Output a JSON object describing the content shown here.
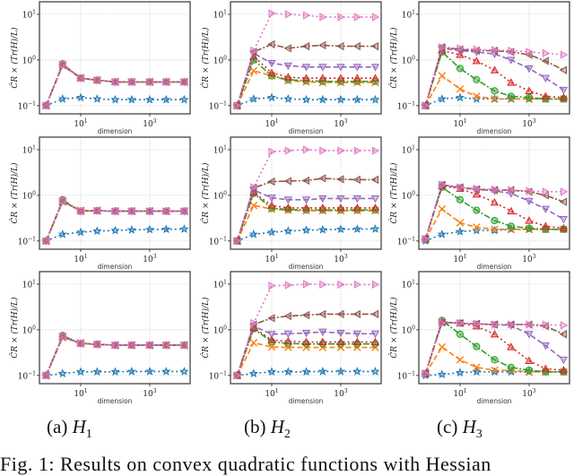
{
  "chart_data": {
    "type": "line",
    "layout": "3 rows x 3 columns grid of subplots",
    "x": [
      1,
      3,
      10,
      30,
      100,
      300,
      1000,
      3000,
      10000
    ],
    "xlabel": "dimension",
    "ylabel": "ĈR × (Tr(H)/L)",
    "xscale": "log",
    "yscale": "log",
    "xlim": [
      0.64,
      14800
    ],
    "ylim": [
      0.066,
      18.8
    ],
    "xticks": [
      {
        "base": "10",
        "exp": "1",
        "value": 10
      },
      {
        "base": "10",
        "exp": "3",
        "value": 1000
      }
    ],
    "yticks": [
      {
        "base": "10",
        "exp": "1",
        "value": 10
      },
      {
        "base": "10",
        "exp": "0",
        "value": 1
      },
      {
        "base": "10",
        "exp": "−1",
        "value": 0.1
      }
    ],
    "grid": true,
    "legend": "none",
    "styles": [
      {
        "color": "#1f77b4",
        "marker": "star",
        "dash": "2,3"
      },
      {
        "color": "#ff7f0e",
        "marker": "x",
        "dash": "6,3"
      },
      {
        "color": "#2ca02c",
        "marker": "circle",
        "dash": "7,2,2,2"
      },
      {
        "color": "#d62728",
        "marker": "triangle-up",
        "dash": "2,3"
      },
      {
        "color": "#9467bd",
        "marker": "triangle-down",
        "dash": "6,3"
      },
      {
        "color": "#8c564b",
        "marker": "triangle-left",
        "dash": "7,2,2,2"
      },
      {
        "color": "#e377c2",
        "marker": "triangle-right",
        "dash": "2,3"
      }
    ],
    "columns": [
      {
        "caption_prefix": "(a)",
        "caption_var": "H",
        "caption_sub": "1",
        "rows": [
          [
            [
              0.1,
              0.14,
              0.15,
              0.14,
              0.135,
              0.135,
              0.135,
              0.135,
              0.135
            ],
            [
              0.1,
              0.75,
              0.4,
              0.36,
              0.33,
              0.33,
              0.33,
              0.33,
              0.33
            ],
            [
              0.1,
              0.82,
              0.4,
              0.36,
              0.33,
              0.33,
              0.33,
              0.33,
              0.33
            ],
            [
              0.1,
              0.8,
              0.4,
              0.36,
              0.33,
              0.33,
              0.33,
              0.33,
              0.33
            ],
            [
              0.1,
              0.8,
              0.4,
              0.36,
              0.33,
              0.33,
              0.33,
              0.33,
              0.33
            ],
            [
              0.1,
              0.78,
              0.4,
              0.36,
              0.33,
              0.33,
              0.33,
              0.33,
              0.33
            ],
            [
              0.1,
              0.8,
              0.4,
              0.36,
              0.33,
              0.33,
              0.33,
              0.33,
              0.33
            ]
          ],
          [
            [
              0.1,
              0.14,
              0.155,
              0.165,
              0.17,
              0.175,
              0.178,
              0.18,
              0.182
            ],
            [
              0.1,
              0.72,
              0.47,
              0.46,
              0.45,
              0.45,
              0.45,
              0.45,
              0.45
            ],
            [
              0.1,
              0.8,
              0.45,
              0.46,
              0.45,
              0.45,
              0.45,
              0.45,
              0.45
            ],
            [
              0.1,
              0.75,
              0.45,
              0.46,
              0.45,
              0.45,
              0.45,
              0.45,
              0.45
            ],
            [
              0.1,
              0.75,
              0.45,
              0.46,
              0.45,
              0.45,
              0.45,
              0.45,
              0.45
            ],
            [
              0.1,
              0.74,
              0.45,
              0.46,
              0.45,
              0.45,
              0.45,
              0.45,
              0.45
            ],
            [
              0.1,
              0.75,
              0.45,
              0.46,
              0.45,
              0.45,
              0.45,
              0.45,
              0.45
            ]
          ],
          [
            [
              0.1,
              0.11,
              0.12,
              0.12,
              0.12,
              0.122,
              0.122,
              0.122,
              0.122
            ],
            [
              0.1,
              0.68,
              0.52,
              0.48,
              0.46,
              0.46,
              0.46,
              0.46,
              0.46
            ],
            [
              0.1,
              0.75,
              0.5,
              0.48,
              0.46,
              0.46,
              0.46,
              0.46,
              0.46
            ],
            [
              0.1,
              0.72,
              0.5,
              0.48,
              0.46,
              0.46,
              0.46,
              0.46,
              0.46
            ],
            [
              0.1,
              0.72,
              0.5,
              0.48,
              0.46,
              0.46,
              0.46,
              0.46,
              0.46
            ],
            [
              0.1,
              0.7,
              0.5,
              0.48,
              0.46,
              0.46,
              0.46,
              0.46,
              0.46
            ],
            [
              0.1,
              0.72,
              0.5,
              0.48,
              0.46,
              0.46,
              0.46,
              0.46,
              0.46
            ]
          ]
        ]
      },
      {
        "caption_prefix": "(b)",
        "caption_var": "H",
        "caption_sub": "2",
        "rows": [
          [
            [
              0.1,
              0.14,
              0.15,
              0.14,
              0.135,
              0.135,
              0.135,
              0.135,
              0.135
            ],
            [
              0.1,
              0.58,
              0.45,
              0.35,
              0.33,
              0.32,
              0.32,
              0.32,
              0.32
            ],
            [
              0.1,
              1.0,
              0.45,
              0.37,
              0.35,
              0.34,
              0.34,
              0.34,
              0.34
            ],
            [
              0.1,
              1.2,
              0.52,
              0.42,
              0.4,
              0.4,
              0.4,
              0.4,
              0.4
            ],
            [
              0.1,
              1.4,
              0.85,
              0.75,
              0.7,
              0.7,
              0.7,
              0.7,
              0.7
            ],
            [
              0.1,
              1.5,
              2.2,
              1.8,
              2.0,
              2.1,
              2.0,
              2.0,
              2.0
            ],
            [
              0.1,
              1.6,
              10.5,
              10,
              9.5,
              8.7,
              8.7,
              8.7,
              8.7
            ]
          ],
          [
            [
              0.1,
              0.14,
              0.155,
              0.165,
              0.172,
              0.176,
              0.18,
              0.182,
              0.183
            ],
            [
              0.1,
              0.6,
              0.5,
              0.47,
              0.46,
              0.46,
              0.46,
              0.46,
              0.46
            ],
            [
              0.1,
              1.1,
              0.52,
              0.49,
              0.48,
              0.48,
              0.48,
              0.48,
              0.48
            ],
            [
              0.1,
              1.15,
              0.6,
              0.53,
              0.53,
              0.53,
              0.53,
              0.53,
              0.53
            ],
            [
              0.1,
              1.3,
              0.88,
              0.8,
              0.8,
              0.85,
              0.85,
              0.85,
              0.85
            ],
            [
              0.1,
              1.45,
              2.0,
              2.05,
              2.1,
              2.35,
              2.25,
              2.2,
              2.2
            ],
            [
              0.1,
              1.5,
              9.0,
              9.5,
              10,
              9.5,
              9.5,
              9.5,
              9.5
            ]
          ],
          [
            [
              0.1,
              0.11,
              0.12,
              0.12,
              0.12,
              0.122,
              0.122,
              0.122,
              0.122
            ],
            [
              0.1,
              0.52,
              0.42,
              0.41,
              0.41,
              0.41,
              0.41,
              0.41,
              0.41
            ],
            [
              0.1,
              1.05,
              0.55,
              0.5,
              0.49,
              0.49,
              0.49,
              0.49,
              0.49
            ],
            [
              0.1,
              1.1,
              0.6,
              0.56,
              0.54,
              0.54,
              0.54,
              0.54,
              0.54
            ],
            [
              0.1,
              1.2,
              0.8,
              0.82,
              0.85,
              0.9,
              0.85,
              0.82,
              0.82
            ],
            [
              0.1,
              1.3,
              1.8,
              2.0,
              2.1,
              2.2,
              2.2,
              2.2,
              2.2
            ],
            [
              0.1,
              1.4,
              9.2,
              9.5,
              10,
              9.8,
              9.8,
              9.8,
              9.8
            ]
          ]
        ]
      },
      {
        "caption_prefix": "(c)",
        "caption_var": "H",
        "caption_sub": "3",
        "rows": [
          [
            [
              0.1,
              0.14,
              0.15,
              0.14,
              0.14,
              0.14,
              0.14,
              0.14,
              0.14
            ],
            [
              0.1,
              0.45,
              0.23,
              0.16,
              0.14,
              0.14,
              0.14,
              0.14,
              0.14
            ],
            [
              0.1,
              1.5,
              0.65,
              0.37,
              0.21,
              0.16,
              0.15,
              0.14,
              0.14
            ],
            [
              0.1,
              1.6,
              1.3,
              0.95,
              0.6,
              0.32,
              0.21,
              0.16,
              0.15
            ],
            [
              0.1,
              1.8,
              1.6,
              1.5,
              1.35,
              1.0,
              0.65,
              0.4,
              0.22
            ],
            [
              0.1,
              1.9,
              1.7,
              1.6,
              1.6,
              1.5,
              1.3,
              0.95,
              0.6
            ],
            [
              0.1,
              1.9,
              1.8,
              1.7,
              1.65,
              1.6,
              1.5,
              1.4,
              1.3
            ]
          ],
          [
            [
              0.1,
              0.14,
              0.16,
              0.17,
              0.17,
              0.18,
              0.18,
              0.18,
              0.18
            ],
            [
              0.11,
              0.5,
              0.25,
              0.2,
              0.18,
              0.18,
              0.18,
              0.18,
              0.18
            ],
            [
              0.11,
              1.5,
              0.8,
              0.47,
              0.28,
              0.21,
              0.19,
              0.18,
              0.18
            ],
            [
              0.11,
              1.6,
              1.4,
              1.05,
              0.7,
              0.45,
              0.28,
              0.21,
              0.19
            ],
            [
              0.11,
              1.7,
              1.45,
              1.35,
              1.25,
              1.1,
              0.75,
              0.5,
              0.3
            ],
            [
              0.11,
              1.7,
              1.5,
              1.35,
              1.3,
              1.3,
              1.2,
              1.0,
              0.72
            ],
            [
              0.11,
              1.7,
              1.5,
              1.4,
              1.35,
              1.3,
              1.25,
              1.2,
              1.2
            ]
          ],
          [
            [
              0.1,
              0.105,
              0.115,
              0.12,
              0.12,
              0.12,
              0.12,
              0.12,
              0.12
            ],
            [
              0.11,
              0.42,
              0.22,
              0.15,
              0.13,
              0.13,
              0.12,
              0.12,
              0.12
            ],
            [
              0.11,
              1.6,
              0.8,
              0.43,
              0.22,
              0.15,
              0.13,
              0.12,
              0.12
            ],
            [
              0.11,
              1.5,
              1.4,
              1.2,
              0.8,
              0.42,
              0.21,
              0.14,
              0.13
            ],
            [
              0.11,
              1.45,
              1.4,
              1.35,
              1.3,
              1.25,
              0.8,
              0.45,
              0.22
            ],
            [
              0.11,
              1.45,
              1.4,
              1.35,
              1.3,
              1.3,
              1.3,
              1.2,
              0.8
            ],
            [
              0.11,
              1.4,
              1.4,
              1.35,
              1.3,
              1.3,
              1.3,
              1.3,
              1.25
            ]
          ]
        ]
      }
    ]
  },
  "figure_caption": "Fig. 1: Results on convex quadratic functions with Hessian"
}
